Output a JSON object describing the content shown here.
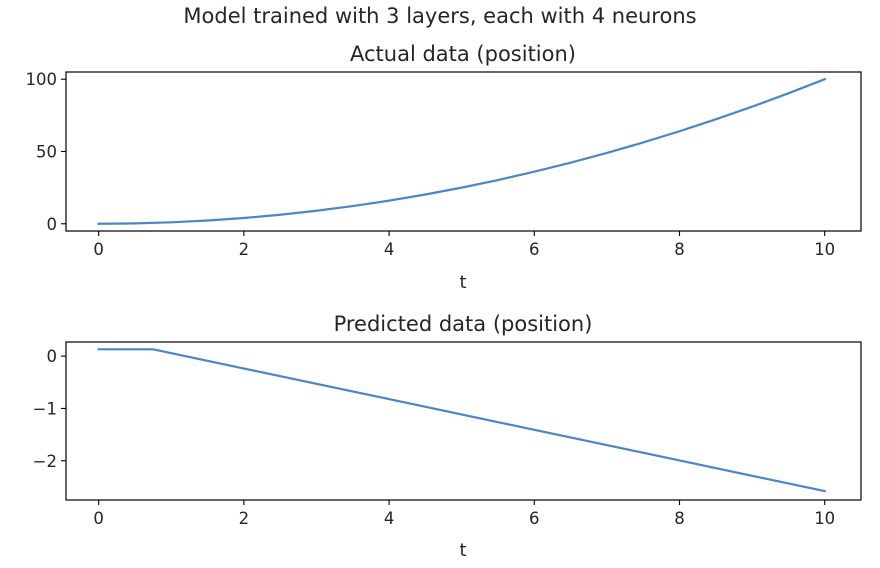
{
  "figure": {
    "suptitle": "Model trained with 3 layers, each with 4 neurons",
    "line_color": "#4c86c6"
  },
  "chart_data": [
    {
      "type": "line",
      "title": "Actual data (position)",
      "xlabel": "t",
      "ylabel": "",
      "xlim": [
        -0.45,
        10.5
      ],
      "ylim": [
        -5,
        105
      ],
      "x_ticks": [
        0,
        2,
        4,
        6,
        8,
        10
      ],
      "x_tick_labels": [
        "0",
        "2",
        "4",
        "6",
        "8",
        "10"
      ],
      "y_ticks": [
        0,
        50,
        100
      ],
      "y_tick_labels": [
        "0",
        "50",
        "100"
      ],
      "grid": false,
      "series": [
        {
          "x": [
            0,
            0.5,
            1,
            1.5,
            2,
            2.5,
            3,
            3.5,
            4,
            4.5,
            5,
            5.5,
            6,
            6.5,
            7,
            7.5,
            8,
            8.5,
            9,
            9.5,
            10
          ],
          "y": [
            0,
            0.25,
            1,
            2.25,
            4,
            6.25,
            9,
            12.25,
            16,
            20.25,
            25,
            30.25,
            36,
            42.25,
            49,
            56.25,
            64,
            72.25,
            81,
            90.25,
            100
          ]
        }
      ]
    },
    {
      "type": "line",
      "title": "Predicted data (position)",
      "xlabel": "t",
      "ylabel": "",
      "xlim": [
        -0.45,
        10.5
      ],
      "ylim": [
        -2.75,
        0.27
      ],
      "x_ticks": [
        0,
        2,
        4,
        6,
        8,
        10
      ],
      "x_tick_labels": [
        "0",
        "2",
        "4",
        "6",
        "8",
        "10"
      ],
      "y_ticks": [
        0,
        -1,
        -2
      ],
      "y_tick_labels": [
        "0",
        "−1",
        "−2"
      ],
      "grid": false,
      "series": [
        {
          "x": [
            0,
            0.75,
            10
          ],
          "y": [
            0.13,
            0.13,
            -2.58
          ]
        }
      ]
    }
  ]
}
